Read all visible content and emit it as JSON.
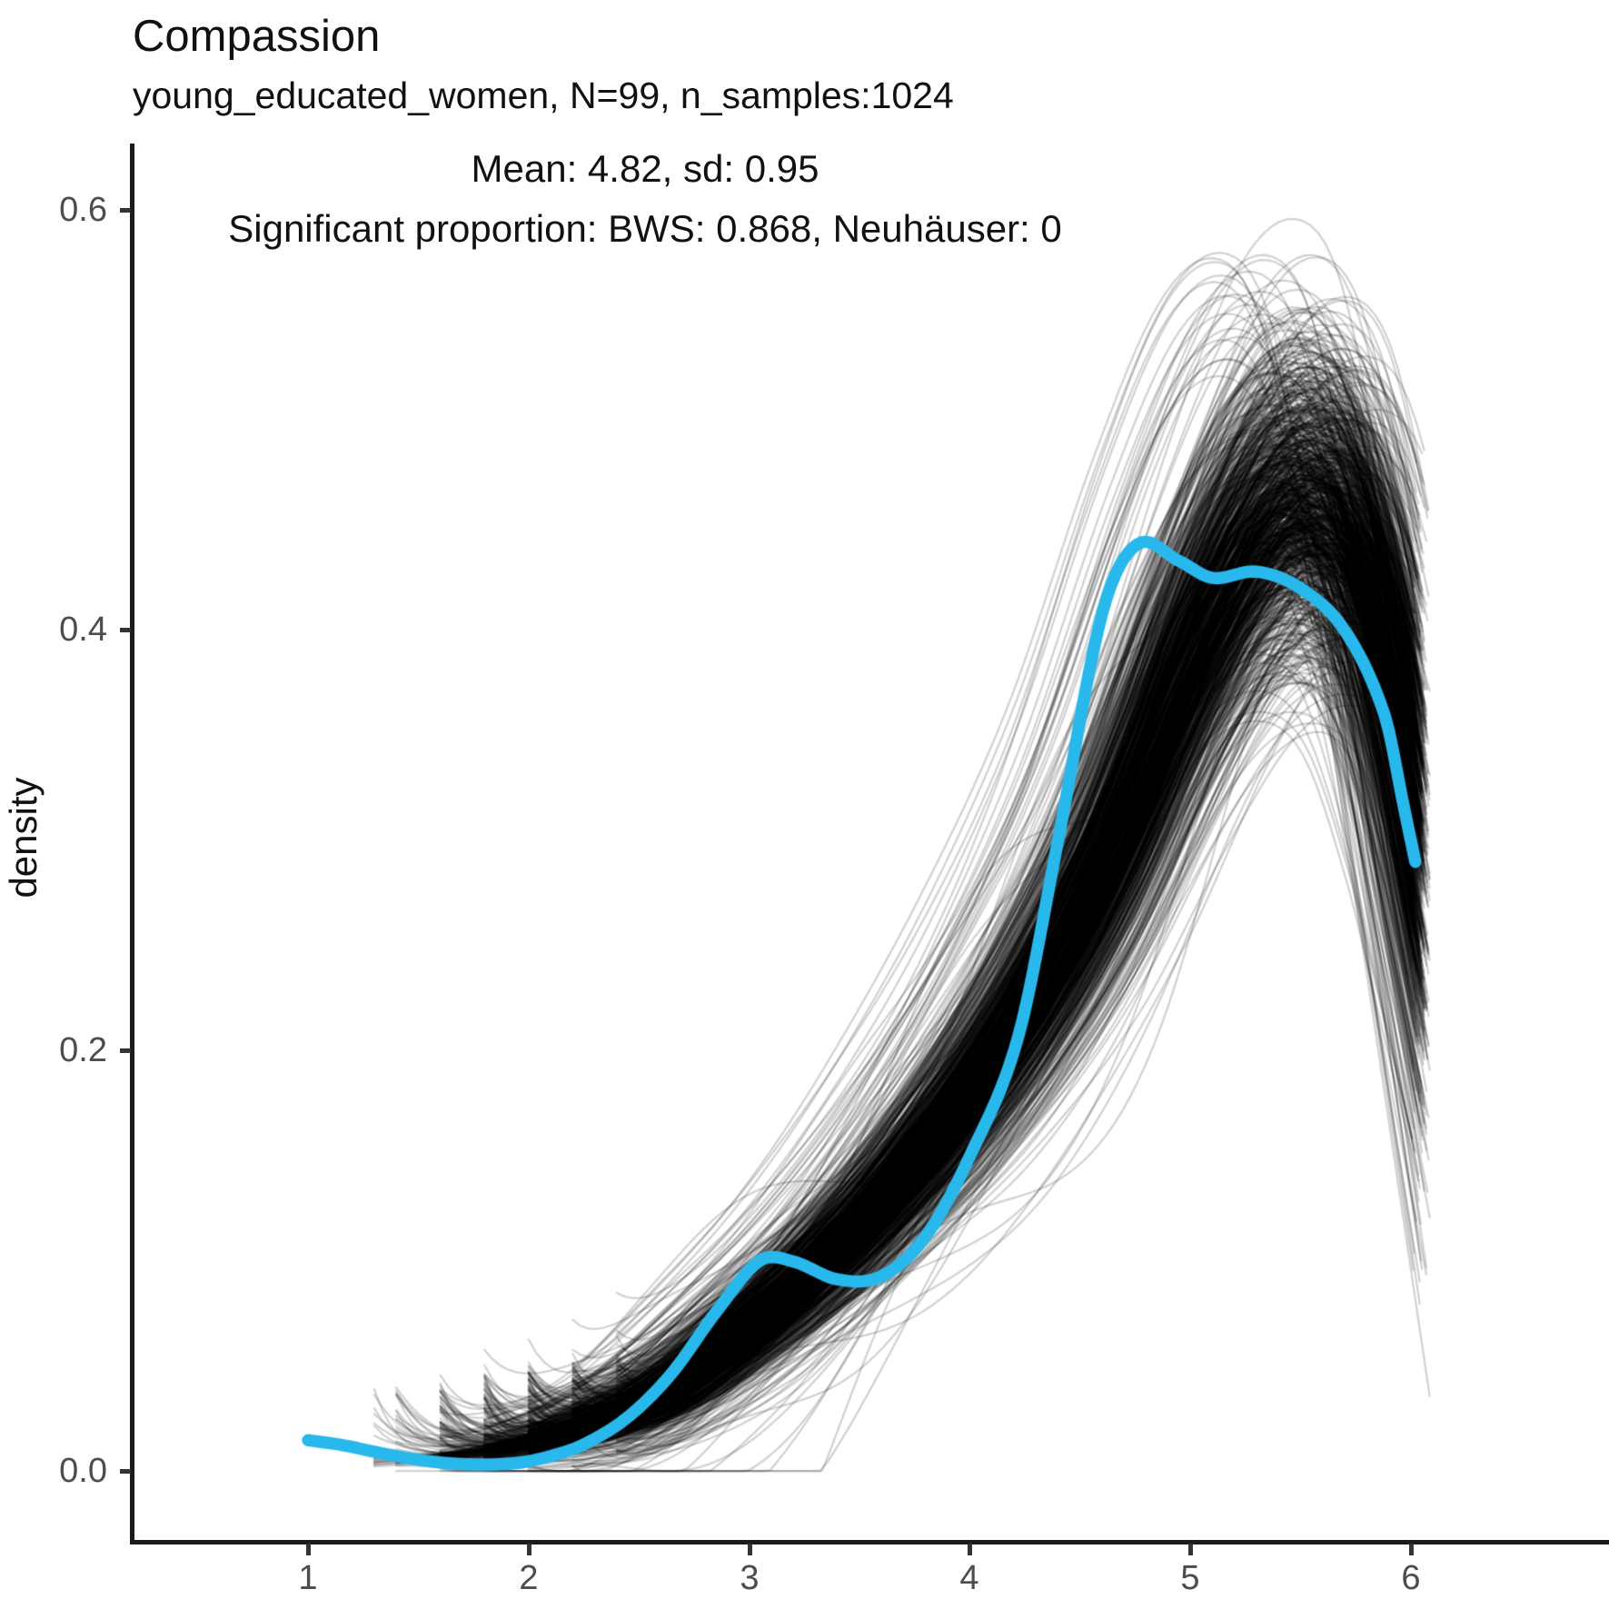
{
  "header": {
    "title": "Compassion",
    "subtitle": "young_educated_women, N=99, n_samples:1024"
  },
  "annotation": {
    "line1": "Mean: 4.82, sd: 0.95",
    "line2": "Significant proportion: BWS: 0.868, Neuhäuser: 0"
  },
  "chart_data": {
    "type": "line",
    "title": "Compassion",
    "subtitle": "young_educated_women, N=99, n_samples:1024",
    "annotations": [
      "Mean: 4.82, sd: 0.95",
      "Significant proportion: BWS: 0.868, Neuhäuser: 0"
    ],
    "xlabel": "",
    "ylabel": "density",
    "xlim": [
      0.2,
      6.9
    ],
    "ylim": [
      -0.032,
      0.635
    ],
    "grid": false,
    "legend": "none",
    "x_ticks": [
      1,
      2,
      3,
      4,
      5,
      6
    ],
    "x_tick_labels": [
      "1",
      "2",
      "3",
      "4",
      "5",
      "6"
    ],
    "y_ticks": [
      0.0,
      0.2,
      0.4,
      0.6
    ],
    "y_tick_labels": [
      "0.0",
      "0.2",
      "0.4",
      "0.6"
    ],
    "colors": {
      "highlight": "#29b8ec",
      "ensemble_stroke": "rgba(0,0,0,0.18)",
      "axis_text": "#4d4d4d",
      "axis_line": "#1a1a1a",
      "text": "#111111"
    },
    "highlight_series": {
      "name": "observed-density",
      "points": [
        [
          1.0,
          0.015
        ],
        [
          1.15,
          0.0128
        ],
        [
          1.35,
          0.0085
        ],
        [
          1.55,
          0.005
        ],
        [
          1.75,
          0.0035
        ],
        [
          1.95,
          0.0042
        ],
        [
          2.1,
          0.0075
        ],
        [
          2.25,
          0.013
        ],
        [
          2.45,
          0.026
        ],
        [
          2.65,
          0.047
        ],
        [
          2.85,
          0.076
        ],
        [
          3.05,
          0.1005
        ],
        [
          3.2,
          0.1
        ],
        [
          3.4,
          0.0915
        ],
        [
          3.6,
          0.093
        ],
        [
          3.8,
          0.112
        ],
        [
          4.0,
          0.15
        ],
        [
          4.22,
          0.207
        ],
        [
          4.4,
          0.3
        ],
        [
          4.6,
          0.408
        ],
        [
          4.76,
          0.441
        ],
        [
          4.95,
          0.433
        ],
        [
          5.1,
          0.425
        ],
        [
          5.3,
          0.428
        ],
        [
          5.5,
          0.42
        ],
        [
          5.7,
          0.4
        ],
        [
          5.88,
          0.36
        ],
        [
          5.97,
          0.315
        ],
        [
          6.03,
          0.285
        ]
      ]
    },
    "ensemble": {
      "name": "bootstrap-densities",
      "n_curves": 1024,
      "seed": 42,
      "base_points": [
        [
          1.4,
          0.0055
        ],
        [
          1.7,
          0.008
        ],
        [
          2.0,
          0.013
        ],
        [
          2.3,
          0.022
        ],
        [
          2.6,
          0.036
        ],
        [
          3.0,
          0.068
        ],
        [
          3.4,
          0.105
        ],
        [
          3.8,
          0.152
        ],
        [
          4.2,
          0.21
        ],
        [
          4.6,
          0.285
        ],
        [
          5.0,
          0.385
        ],
        [
          5.3,
          0.445
        ],
        [
          5.55,
          0.462
        ],
        [
          5.75,
          0.44
        ],
        [
          5.95,
          0.36
        ],
        [
          6.1,
          0.275
        ]
      ],
      "start_values": [
        1.4,
        1.6,
        1.8,
        2.0,
        2.2,
        2.4
      ],
      "start_weights": [
        0.05,
        0.12,
        0.2,
        0.28,
        0.22,
        0.13
      ],
      "x_end_min": 6.02,
      "x_end_span": 0.07,
      "shift_sd": 0.11,
      "amp_sd": 0.085,
      "bump_sd": 0.013,
      "outlier_frac": 0.06,
      "outlier_bump_sd": 0.05,
      "tall_outlier_frac": 0.02
    }
  }
}
